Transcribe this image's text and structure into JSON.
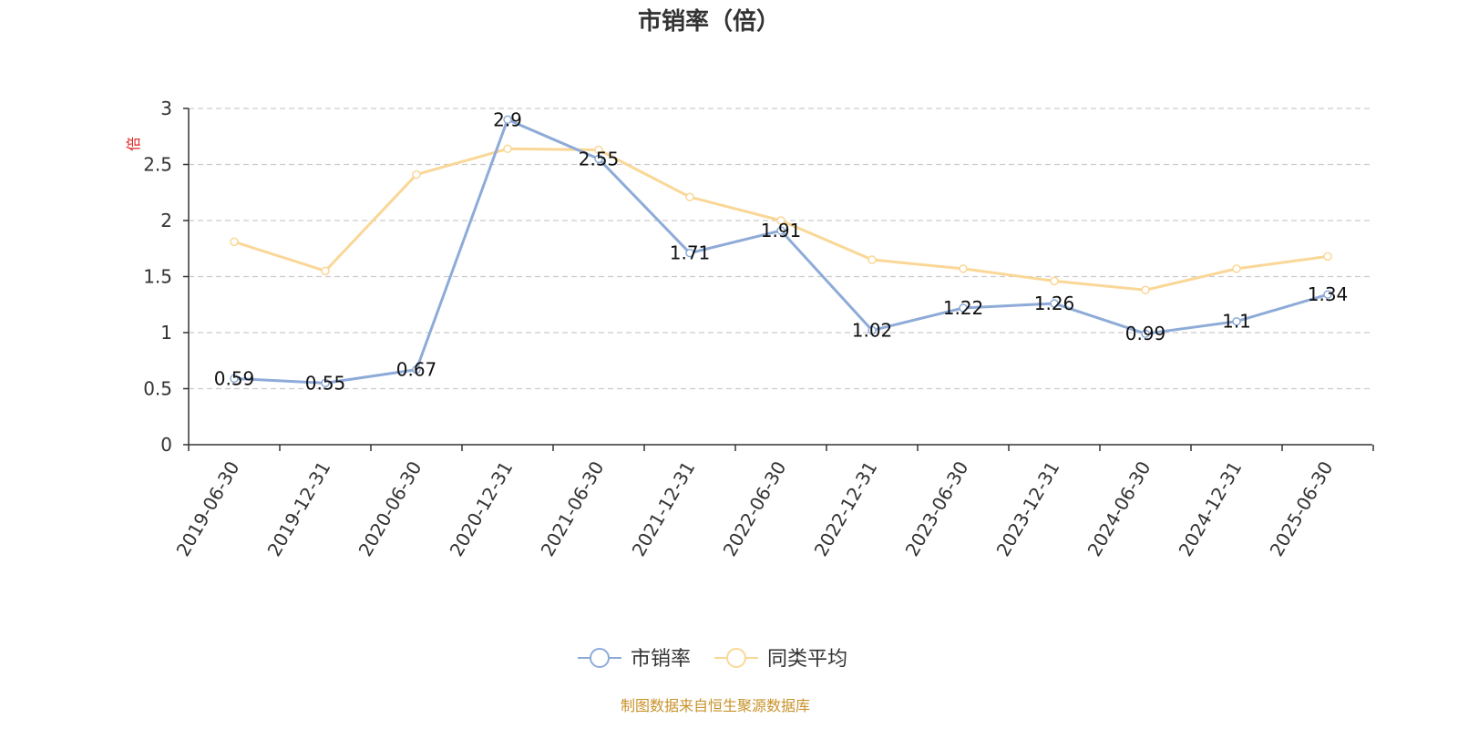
{
  "chart_data": {
    "type": "line",
    "title": "市销率（倍）",
    "ylabel": "倍",
    "xlabel": "",
    "ylim": [
      0,
      3
    ],
    "yticks": [
      "0",
      "0.5",
      "1",
      "1.5",
      "2",
      "2.5",
      "3"
    ],
    "grid": true,
    "legend_position": "bottom-center",
    "categories": [
      "2019-06-30",
      "2019-12-31",
      "2020-06-30",
      "2020-12-31",
      "2021-06-30",
      "2021-12-31",
      "2022-06-30",
      "2022-12-31",
      "2023-06-30",
      "2023-12-31",
      "2024-06-30",
      "2024-12-31",
      "2025-06-30"
    ],
    "series": [
      {
        "name": "市销率",
        "color": "#8eabd8",
        "values": [
          0.59,
          0.55,
          0.67,
          2.9,
          2.55,
          1.71,
          1.91,
          1.02,
          1.22,
          1.26,
          0.99,
          1.1,
          1.34
        ],
        "labels": [
          "0.59",
          "0.55",
          "0.67",
          "2.9",
          "2.55",
          "1.71",
          "1.91",
          "1.02",
          "1.22",
          "1.26",
          "0.99",
          "1.1",
          "1.34"
        ]
      },
      {
        "name": "同类平均",
        "color": "#fad797",
        "values": [
          1.81,
          1.55,
          2.41,
          2.64,
          2.63,
          2.21,
          2.0,
          1.65,
          1.57,
          1.46,
          1.38,
          1.57,
          1.68
        ]
      }
    ],
    "source": "制图数据来自恒生聚源数据库"
  }
}
